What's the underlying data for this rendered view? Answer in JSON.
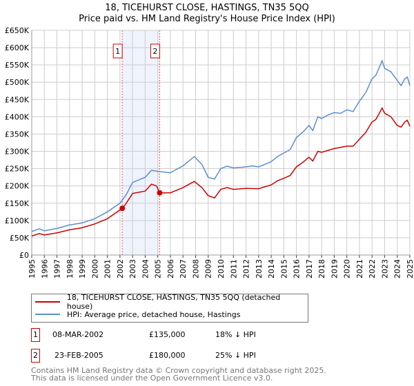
{
  "title": {
    "line1": "18, TICEHURST CLOSE, HASTINGS, TN35 5QQ",
    "line2": "Price paid vs. HM Land Registry's House Price Index (HPI)"
  },
  "chart_data": {
    "type": "line",
    "title": "18, TICEHURST CLOSE, HASTINGS, TN35 5QQ - Price paid vs. HM Land Registry's House Price Index (HPI)",
    "xlabel": "",
    "ylabel": "",
    "xlim": [
      1995,
      2025
    ],
    "ylim": [
      0,
      650000
    ],
    "grid": true,
    "x_ticks": [
      "1995",
      "1996",
      "1997",
      "1998",
      "1999",
      "2000",
      "2001",
      "2002",
      "2003",
      "2004",
      "2005",
      "2006",
      "2007",
      "2008",
      "2009",
      "2010",
      "2011",
      "2012",
      "2013",
      "2014",
      "2015",
      "2016",
      "2017",
      "2018",
      "2019",
      "2020",
      "2021",
      "2022",
      "2023",
      "2024",
      "2025"
    ],
    "y_ticks": [
      {
        "value": 0,
        "label": "£0"
      },
      {
        "value": 50000,
        "label": "£50K"
      },
      {
        "value": 100000,
        "label": "£100K"
      },
      {
        "value": 150000,
        "label": "£150K"
      },
      {
        "value": 200000,
        "label": "£200K"
      },
      {
        "value": 250000,
        "label": "£250K"
      },
      {
        "value": 300000,
        "label": "£300K"
      },
      {
        "value": 350000,
        "label": "£350K"
      },
      {
        "value": 400000,
        "label": "£400K"
      },
      {
        "value": 450000,
        "label": "£450K"
      },
      {
        "value": 500000,
        "label": "£500K"
      },
      {
        "value": 550000,
        "label": "£550K"
      },
      {
        "value": 600000,
        "label": "£600K"
      },
      {
        "value": 650000,
        "label": "£650K"
      }
    ],
    "shaded_range": [
      2002.18,
      2005.15
    ],
    "series": [
      {
        "name": "18, TICEHURST CLOSE, HASTINGS, TN35 5QQ (detached house)",
        "color": "#cc0000",
        "x": [
          1995,
          1995.6,
          1996,
          1997,
          1998,
          1999,
          2000,
          2001,
          2002.18,
          2002.5,
          2003,
          2004,
          2004.5,
          2004.9,
          2005.15,
          2006,
          2007,
          2007.9,
          2008.5,
          2009,
          2009.5,
          2010,
          2010.5,
          2011,
          2012,
          2013,
          2014,
          2014.5,
          2015,
          2015.5,
          2016,
          2016.5,
          2017,
          2017.3,
          2017.7,
          2018,
          2019,
          2020,
          2020.5,
          2021,
          2021.5,
          2022,
          2022.3,
          2022.8,
          2023,
          2023.5,
          2024,
          2024.3,
          2024.6,
          2024.8,
          2025
        ],
        "y": [
          55000,
          62000,
          58000,
          64000,
          73000,
          79000,
          90000,
          105000,
          135000,
          150000,
          178000,
          185000,
          205000,
          200000,
          180000,
          180000,
          195000,
          213000,
          195000,
          172000,
          165000,
          190000,
          195000,
          190000,
          193000,
          192000,
          203000,
          215000,
          222000,
          230000,
          255000,
          268000,
          283000,
          272000,
          300000,
          297000,
          308000,
          315000,
          315000,
          335000,
          355000,
          385000,
          392000,
          425000,
          410000,
          400000,
          375000,
          370000,
          385000,
          390000,
          372000
        ]
      },
      {
        "name": "HPI: Average price, detached house, Hastings",
        "color": "#5b8dd0",
        "x": [
          1995,
          1995.6,
          1996,
          1997,
          1998,
          1999,
          2000,
          2001,
          2002,
          2002.5,
          2003,
          2004,
          2004.5,
          2005,
          2006,
          2007,
          2007.9,
          2008.5,
          2009,
          2009.5,
          2010,
          2010.5,
          2011,
          2012,
          2012.5,
          2013,
          2014,
          2014.5,
          2015,
          2015.5,
          2016,
          2016.5,
          2017,
          2017.3,
          2017.7,
          2018,
          2018.5,
          2019,
          2019.5,
          2020,
          2020.5,
          2021,
          2021.5,
          2022,
          2022.3,
          2022.6,
          2022.8,
          2023,
          2023.5,
          2024,
          2024.3,
          2024.6,
          2024.8,
          2025
        ],
        "y": [
          68000,
          76000,
          70000,
          77000,
          87000,
          93000,
          105000,
          125000,
          150000,
          175000,
          210000,
          225000,
          245000,
          242000,
          238000,
          258000,
          285000,
          262000,
          225000,
          220000,
          250000,
          257000,
          252000,
          255000,
          258000,
          255000,
          270000,
          285000,
          295000,
          305000,
          340000,
          355000,
          375000,
          360000,
          400000,
          395000,
          405000,
          412000,
          410000,
          420000,
          415000,
          445000,
          470000,
          510000,
          520000,
          545000,
          562000,
          540000,
          530000,
          505000,
          490000,
          510000,
          515000,
          490000
        ]
      }
    ],
    "sales": [
      {
        "label": "1",
        "x": 2002.18,
        "y": 135000
      },
      {
        "label": "2",
        "x": 2005.15,
        "y": 180000
      }
    ]
  },
  "legend": {
    "property": "18, TICEHURST CLOSE, HASTINGS, TN35 5QQ (detached house)",
    "hpi": "HPI: Average price, detached house, Hastings"
  },
  "sales_table": [
    {
      "num": "1",
      "date": "08-MAR-2002",
      "price": "£135,000",
      "hpi": "18% ↓ HPI"
    },
    {
      "num": "2",
      "date": "23-FEB-2005",
      "price": "£180,000",
      "hpi": "25% ↓ HPI"
    }
  ],
  "footer": {
    "line1": "Contains HM Land Registry data © Crown copyright and database right 2025.",
    "line2": "This data is licensed under the Open Government Licence v3.0."
  }
}
